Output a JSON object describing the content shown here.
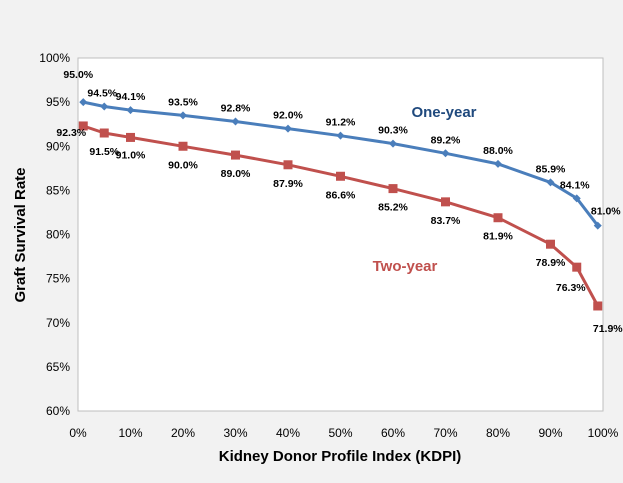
{
  "chart_data": {
    "type": "line",
    "xlabel": "Kidney Donor Profile Index (KDPI)",
    "ylabel": "Graft Survival Rate",
    "xlim": [
      0,
      100
    ],
    "ylim": [
      60,
      100
    ],
    "x_ticks": [
      0,
      10,
      20,
      30,
      40,
      50,
      60,
      70,
      80,
      90,
      100
    ],
    "x_tick_labels": [
      "0%",
      "10%",
      "20%",
      "30%",
      "40%",
      "50%",
      "60%",
      "70%",
      "80%",
      "90%",
      "100%"
    ],
    "y_ticks": [
      60,
      65,
      70,
      75,
      80,
      85,
      90,
      95,
      100
    ],
    "y_tick_labels": [
      "60%",
      "65%",
      "70%",
      "75%",
      "80%",
      "85%",
      "90%",
      "95%",
      "100%"
    ],
    "grid": false,
    "series": [
      {
        "name": "One-year",
        "color": "#4a7ebb",
        "marker": "diamond",
        "x": [
          1,
          5,
          10,
          20,
          30,
          40,
          50,
          60,
          70,
          80,
          90,
          95,
          99
        ],
        "values": [
          95.0,
          94.5,
          94.1,
          93.5,
          92.8,
          92.0,
          91.2,
          90.3,
          89.2,
          88.0,
          85.9,
          84.1,
          81.0
        ],
        "labels": [
          "95.0%",
          "94.5%",
          "94.1%",
          "93.5%",
          "92.8%",
          "92.0%",
          "91.2%",
          "90.3%",
          "89.2%",
          "88.0%",
          "85.9%",
          "84.1%",
          "81.0%"
        ]
      },
      {
        "name": "Two-year",
        "color": "#c0504d",
        "marker": "square",
        "x": [
          1,
          5,
          10,
          20,
          30,
          40,
          50,
          60,
          70,
          80,
          90,
          95,
          99
        ],
        "values": [
          92.3,
          91.5,
          91.0,
          90.0,
          89.0,
          87.9,
          86.6,
          85.2,
          83.7,
          81.9,
          78.9,
          76.3,
          71.9
        ],
        "labels": [
          "92.3%",
          "91.5%",
          "91.0%",
          "90.0%",
          "89.0%",
          "87.9%",
          "86.6%",
          "85.2%",
          "83.7%",
          "81.9%",
          "78.9%",
          "76.3%",
          "71.9%"
        ]
      }
    ]
  }
}
